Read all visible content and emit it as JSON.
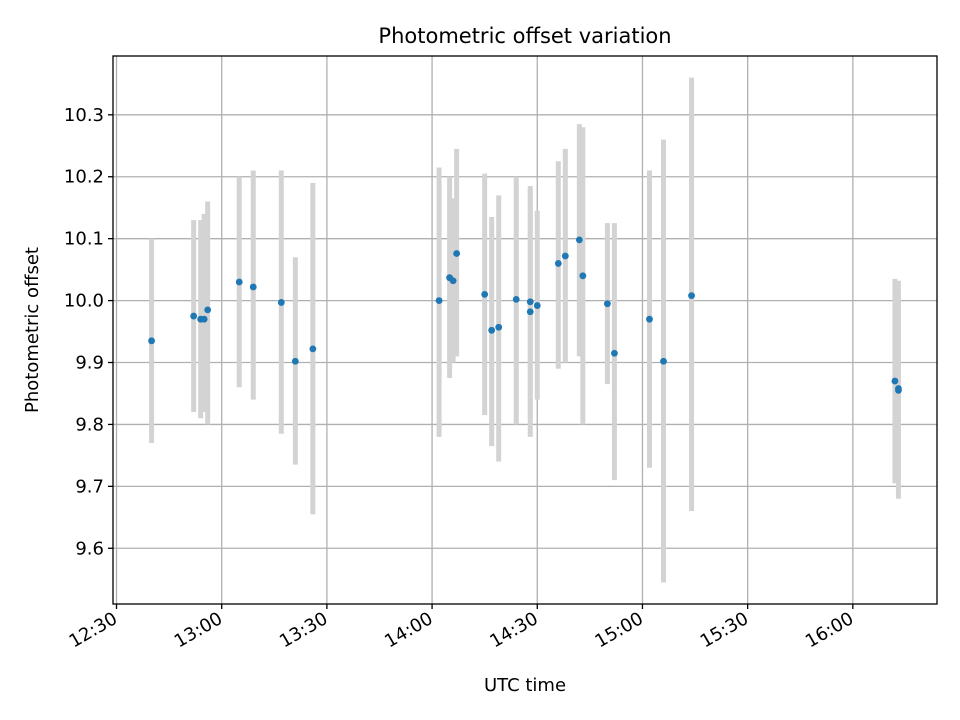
{
  "chart_data": {
    "type": "scatter",
    "title": "Photometric offset variation",
    "xlabel": "UTC time",
    "ylabel": "Photometric offset",
    "xlim": [
      "12:29",
      "16:24"
    ],
    "ylim": [
      9.51,
      10.395
    ],
    "grid": true,
    "x_ticks": [
      "12:30",
      "13:00",
      "13:30",
      "14:00",
      "14:30",
      "15:00",
      "15:30",
      "16:00"
    ],
    "y_ticks": [
      9.6,
      9.7,
      9.8,
      9.9,
      10.0,
      10.1,
      10.2,
      10.3
    ],
    "colors": {
      "points": "#1f77b4",
      "errorbars": "#d3d3d3",
      "grid": "#b0b0b0"
    },
    "series": [
      {
        "points": [
          {
            "x": "12:40",
            "y": 9.935,
            "low": 9.77,
            "high": 10.1
          },
          {
            "x": "12:52",
            "y": 9.975,
            "low": 9.82,
            "high": 10.13
          },
          {
            "x": "12:54",
            "y": 9.97,
            "low": 9.81,
            "high": 10.13
          },
          {
            "x": "12:55",
            "y": 9.97,
            "low": 9.82,
            "high": 10.14
          },
          {
            "x": "12:56",
            "y": 9.985,
            "low": 9.8,
            "high": 10.16
          },
          {
            "x": "13:05",
            "y": 10.03,
            "low": 9.86,
            "high": 10.2
          },
          {
            "x": "13:09",
            "y": 10.022,
            "low": 9.84,
            "high": 10.21
          },
          {
            "x": "13:17",
            "y": 9.997,
            "low": 9.785,
            "high": 10.21
          },
          {
            "x": "13:21",
            "y": 9.902,
            "low": 9.735,
            "high": 10.07
          },
          {
            "x": "13:26",
            "y": 9.922,
            "low": 9.655,
            "high": 10.19
          },
          {
            "x": "14:02",
            "y": 10.0,
            "low": 9.78,
            "high": 10.215
          },
          {
            "x": "14:05",
            "y": 10.037,
            "low": 9.875,
            "high": 10.2
          },
          {
            "x": "14:06",
            "y": 10.032,
            "low": 9.9,
            "high": 10.165
          },
          {
            "x": "14:07",
            "y": 10.076,
            "low": 9.91,
            "high": 10.245
          },
          {
            "x": "14:15",
            "y": 10.01,
            "low": 9.815,
            "high": 10.205
          },
          {
            "x": "14:17",
            "y": 9.952,
            "low": 9.765,
            "high": 10.135
          },
          {
            "x": "14:19",
            "y": 9.957,
            "low": 9.74,
            "high": 10.17
          },
          {
            "x": "14:24",
            "y": 10.002,
            "low": 9.8,
            "high": 10.2
          },
          {
            "x": "14:28",
            "y": 9.998,
            "low": 9.81,
            "high": 10.185
          },
          {
            "x": "14:28",
            "y": 9.982,
            "low": 9.78,
            "high": 10.18
          },
          {
            "x": "14:30",
            "y": 9.992,
            "low": 9.84,
            "high": 10.145
          },
          {
            "x": "14:36",
            "y": 10.06,
            "low": 9.89,
            "high": 10.225
          },
          {
            "x": "14:38",
            "y": 10.072,
            "low": 9.9,
            "high": 10.245
          },
          {
            "x": "14:42",
            "y": 10.098,
            "low": 9.91,
            "high": 10.285
          },
          {
            "x": "14:43",
            "y": 10.04,
            "low": 9.8,
            "high": 10.28
          },
          {
            "x": "14:50",
            "y": 9.995,
            "low": 9.865,
            "high": 10.125
          },
          {
            "x": "14:52",
            "y": 9.915,
            "low": 9.71,
            "high": 10.125
          },
          {
            "x": "15:02",
            "y": 9.97,
            "low": 9.73,
            "high": 10.21
          },
          {
            "x": "15:06",
            "y": 9.902,
            "low": 9.545,
            "high": 10.26
          },
          {
            "x": "15:14",
            "y": 10.008,
            "low": 9.66,
            "high": 10.36
          },
          {
            "x": "16:12",
            "y": 9.87,
            "low": 9.705,
            "high": 10.035
          },
          {
            "x": "16:13",
            "y": 9.855,
            "low": 9.68,
            "high": 10.032
          },
          {
            "x": "16:13",
            "y": 9.858,
            "low": 9.715,
            "high": 10.0
          }
        ]
      }
    ]
  }
}
